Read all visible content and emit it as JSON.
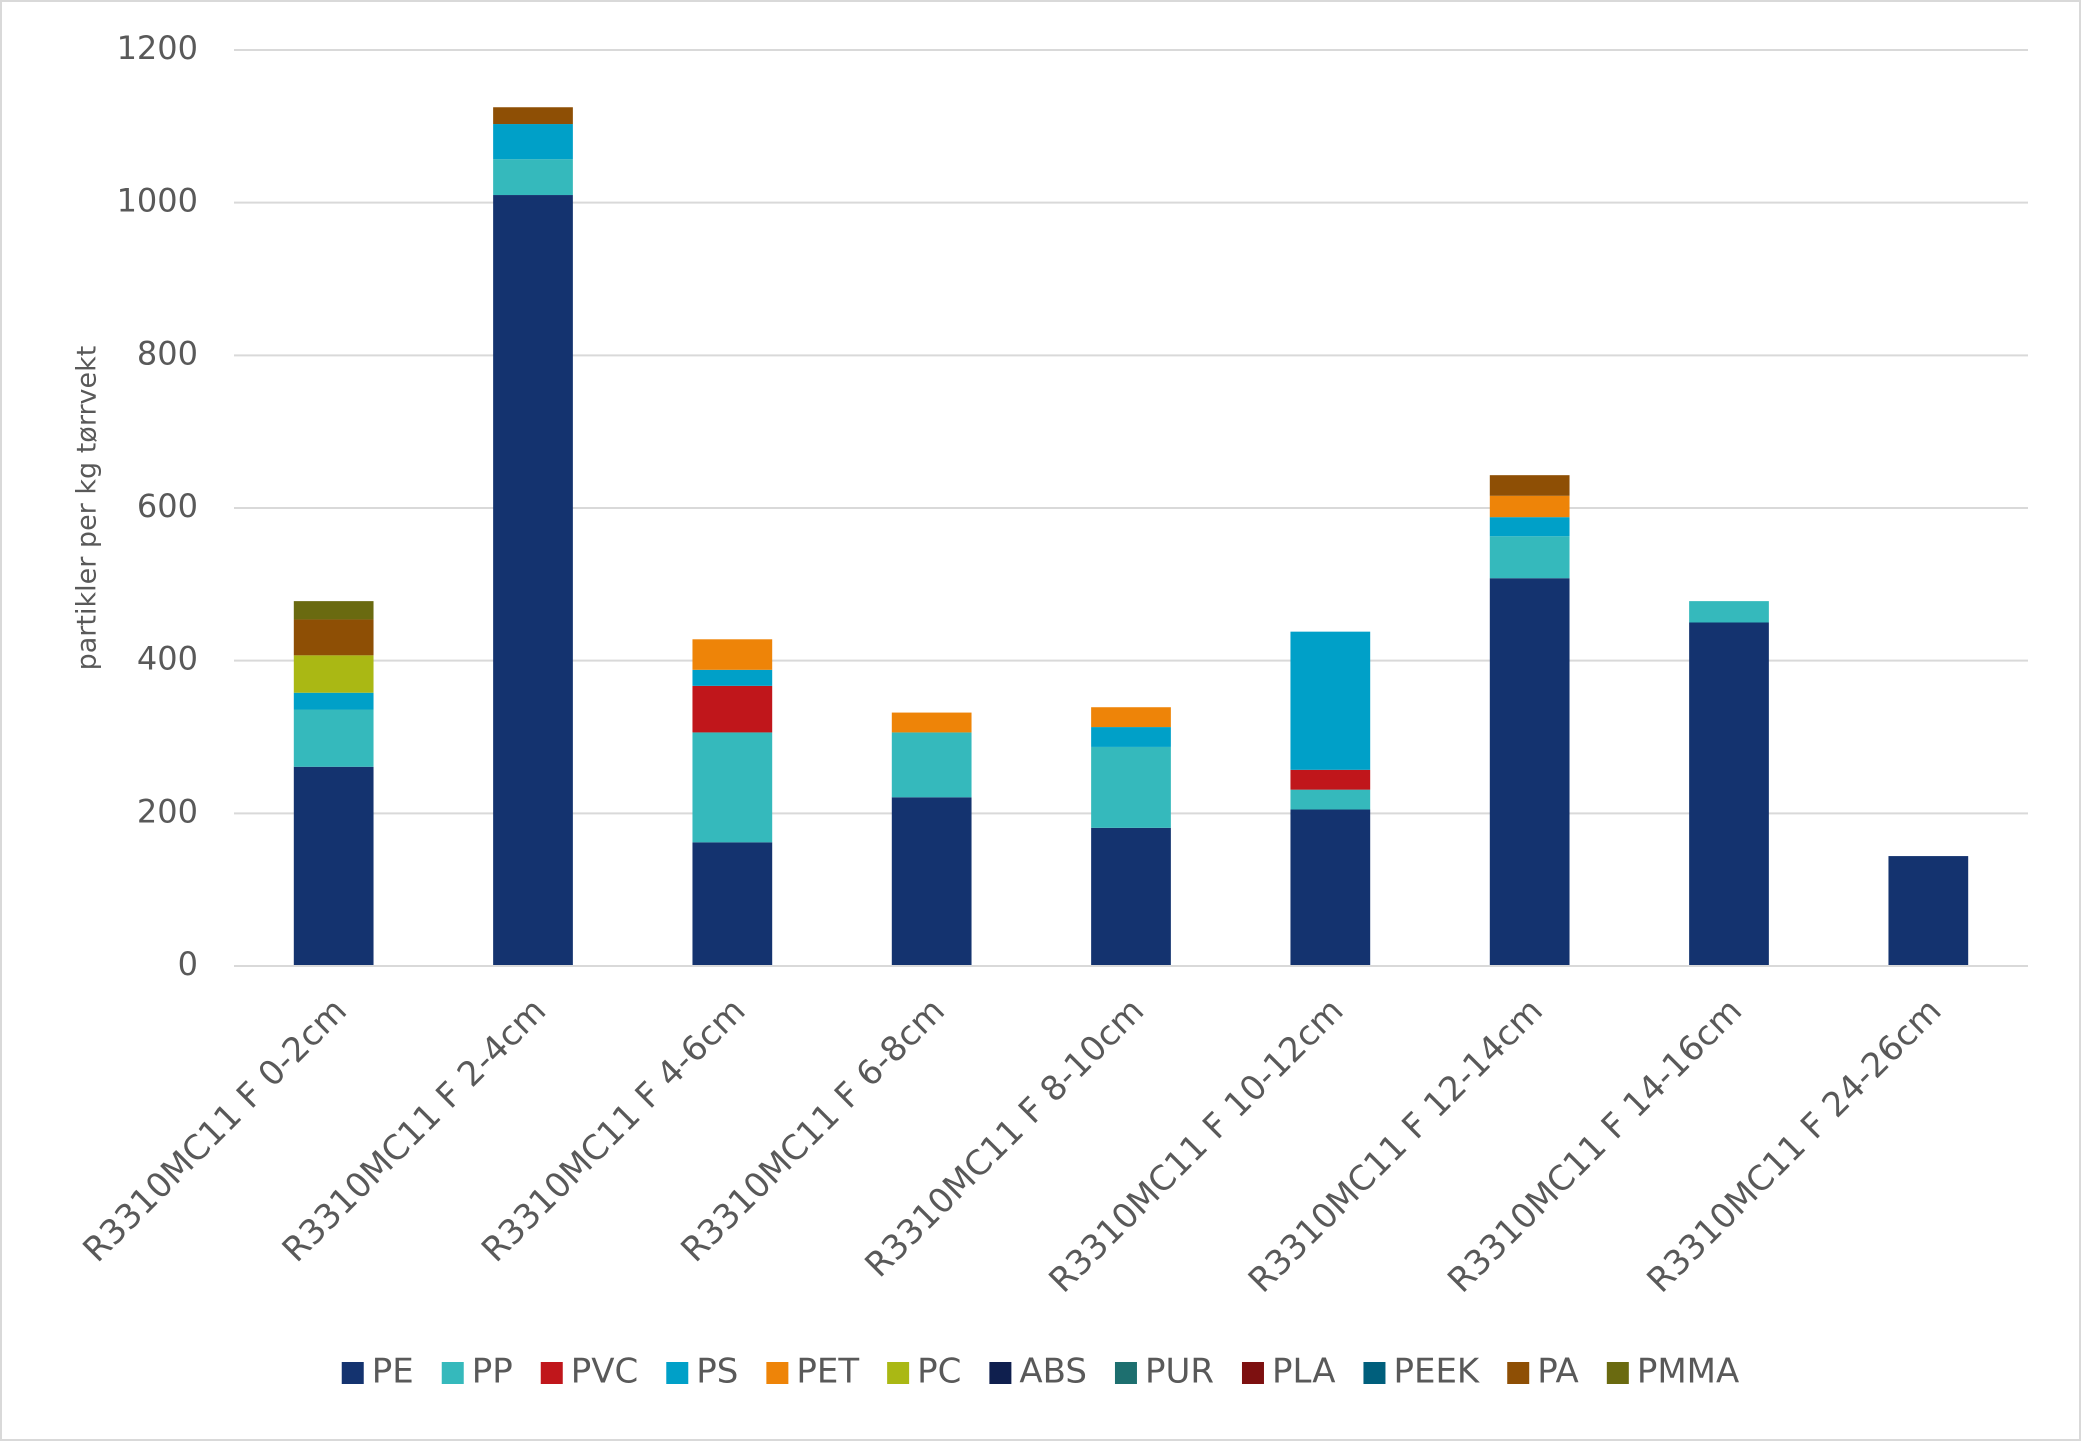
{
  "chart_data": {
    "type": "stacked-bar",
    "y_label": "partikler per kg tørrvekt",
    "categories": [
      "R3310MC11 F 0-2cm",
      "R3310MC11 F 2-4cm",
      "R3310MC11 F 4-6cm",
      "R3310MC11 F 6-8cm",
      "R3310MC11 F 8-10cm",
      "R3310MC11 F 10-12cm",
      "R3310MC11 F 12-14cm",
      "R3310MC11 F 14-16cm",
      "R3310MC11 F 24-26cm"
    ],
    "series": [
      {
        "name": "PE",
        "color": "#14336f",
        "values": [
          261,
          1010,
          162,
          221,
          181,
          205,
          508,
          450,
          144
        ]
      },
      {
        "name": "PP",
        "color": "#35b9bc",
        "values": [
          75,
          47,
          144,
          85,
          106,
          26,
          55,
          28,
          0
        ]
      },
      {
        "name": "PVC",
        "color": "#c0161b",
        "values": [
          0,
          0,
          61,
          0,
          0,
          26,
          0,
          0,
          0
        ]
      },
      {
        "name": "PS",
        "color": "#00a0c8",
        "values": [
          22,
          46,
          21,
          0,
          26,
          181,
          25,
          0,
          0
        ]
      },
      {
        "name": "PET",
        "color": "#ee8408",
        "values": [
          0,
          0,
          40,
          26,
          26,
          0,
          28,
          0,
          0
        ]
      },
      {
        "name": "PC",
        "color": "#aab814",
        "values": [
          49,
          0,
          0,
          0,
          0,
          0,
          0,
          0,
          0
        ]
      },
      {
        "name": "ABS",
        "color": "#0f1f4e",
        "values": [
          0,
          0,
          0,
          0,
          0,
          0,
          0,
          0,
          0
        ]
      },
      {
        "name": "PUR",
        "color": "#1d6f6f",
        "values": [
          0,
          0,
          0,
          0,
          0,
          0,
          0,
          0,
          0
        ]
      },
      {
        "name": "PLA",
        "color": "#7d1010",
        "values": [
          0,
          0,
          0,
          0,
          0,
          0,
          0,
          0,
          0
        ]
      },
      {
        "name": "PEEK",
        "color": "#005f7c",
        "values": [
          0,
          0,
          0,
          0,
          0,
          0,
          0,
          0,
          0
        ]
      },
      {
        "name": "PA",
        "color": "#8e4f05",
        "values": [
          47,
          22,
          0,
          0,
          0,
          0,
          27,
          0,
          0
        ]
      },
      {
        "name": "PMMA",
        "color": "#6a6a10",
        "values": [
          24,
          0,
          0,
          0,
          0,
          0,
          0,
          0,
          0
        ]
      }
    ],
    "ylim": [
      0,
      1200
    ],
    "yticks": [
      0,
      200,
      400,
      600,
      800,
      1000,
      1200
    ],
    "grid": true,
    "legend": "bottom"
  }
}
